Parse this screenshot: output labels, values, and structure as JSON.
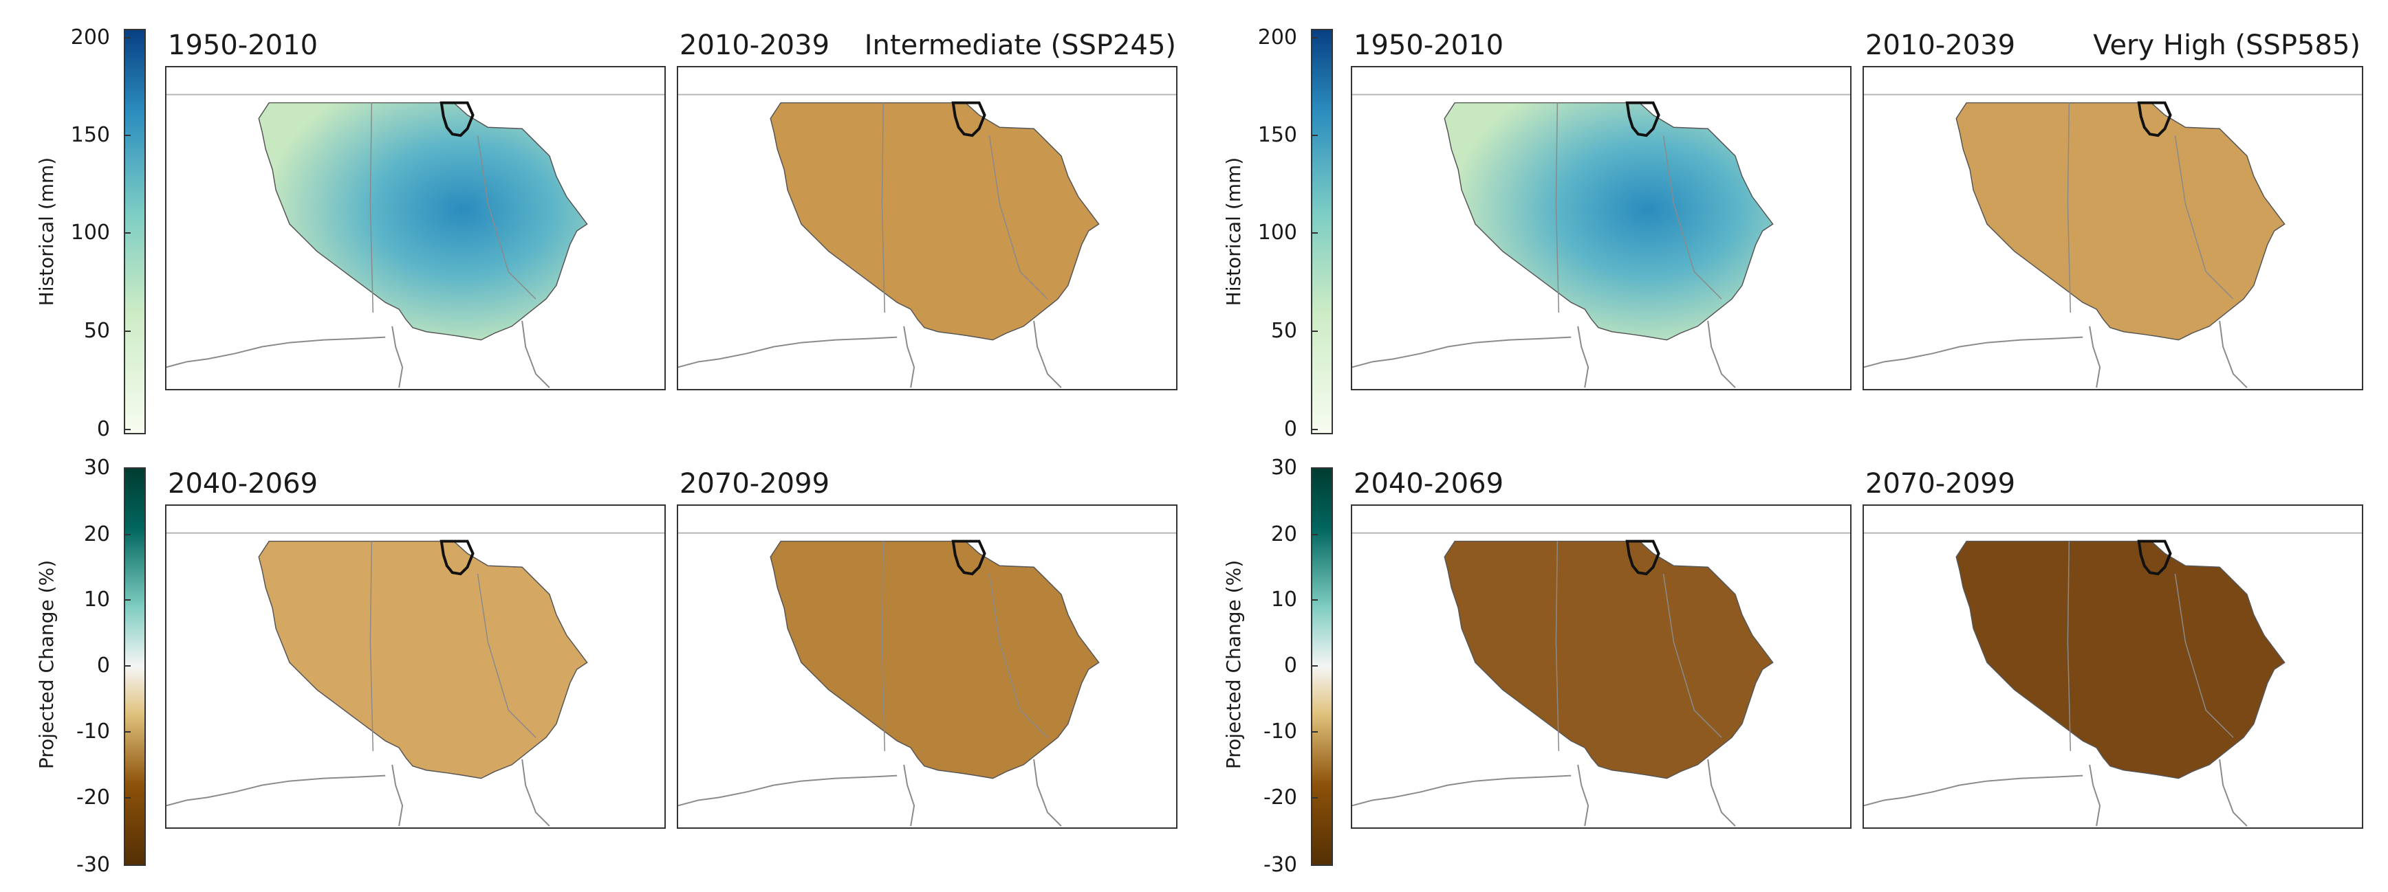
{
  "colors": {
    "hist_scale": [
      "#f7fcf0",
      "#ccebc5",
      "#7bccc4",
      "#2b8cbe",
      "#084081"
    ],
    "change_scale": [
      "#543005",
      "#8c510a",
      "#dfc27d",
      "#f5f5f5",
      "#80cdc1",
      "#01665e",
      "#003c30"
    ],
    "boundary": "#111111",
    "outline": "#8a8a8a"
  },
  "scenarios": [
    {
      "name": "Intermediate (SSP245)",
      "panels": [
        {
          "title": "1950-2010",
          "kind": "historical",
          "tone": "hist"
        },
        {
          "title": "2010-2039",
          "kind": "change",
          "tone": "#c9974e"
        },
        {
          "title": "2040-2069",
          "kind": "change",
          "tone": "#d4a763"
        },
        {
          "title": "2070-2099",
          "kind": "change",
          "tone": "#b7823a"
        }
      ],
      "historical_colorbar": {
        "label": "Historical (mm)",
        "ticks": [
          "200",
          "150",
          "100",
          "50",
          "0"
        ],
        "range": [
          0,
          200
        ]
      },
      "change_colorbar": {
        "label": "Projected Change (%)",
        "ticks": [
          "30",
          "20",
          "10",
          "0",
          "-10",
          "-20",
          "-30"
        ],
        "range": [
          -30,
          30
        ]
      }
    },
    {
      "name": "Very High (SSP585)",
      "panels": [
        {
          "title": "1950-2010",
          "kind": "historical",
          "tone": "hist"
        },
        {
          "title": "2010-2039",
          "kind": "change",
          "tone": "#cfa05a"
        },
        {
          "title": "2040-2069",
          "kind": "change",
          "tone": "#8e5a1f"
        },
        {
          "title": "2070-2099",
          "kind": "change",
          "tone": "#7a4814"
        }
      ],
      "historical_colorbar": {
        "label": "Historical (mm)",
        "ticks": [
          "200",
          "150",
          "100",
          "50",
          "0"
        ],
        "range": [
          0,
          200
        ]
      },
      "change_colorbar": {
        "label": "Projected Change (%)",
        "ticks": [
          "30",
          "20",
          "10",
          "0",
          "-10",
          "-20",
          "-30"
        ],
        "range": [
          -30,
          30
        ]
      }
    }
  ]
}
